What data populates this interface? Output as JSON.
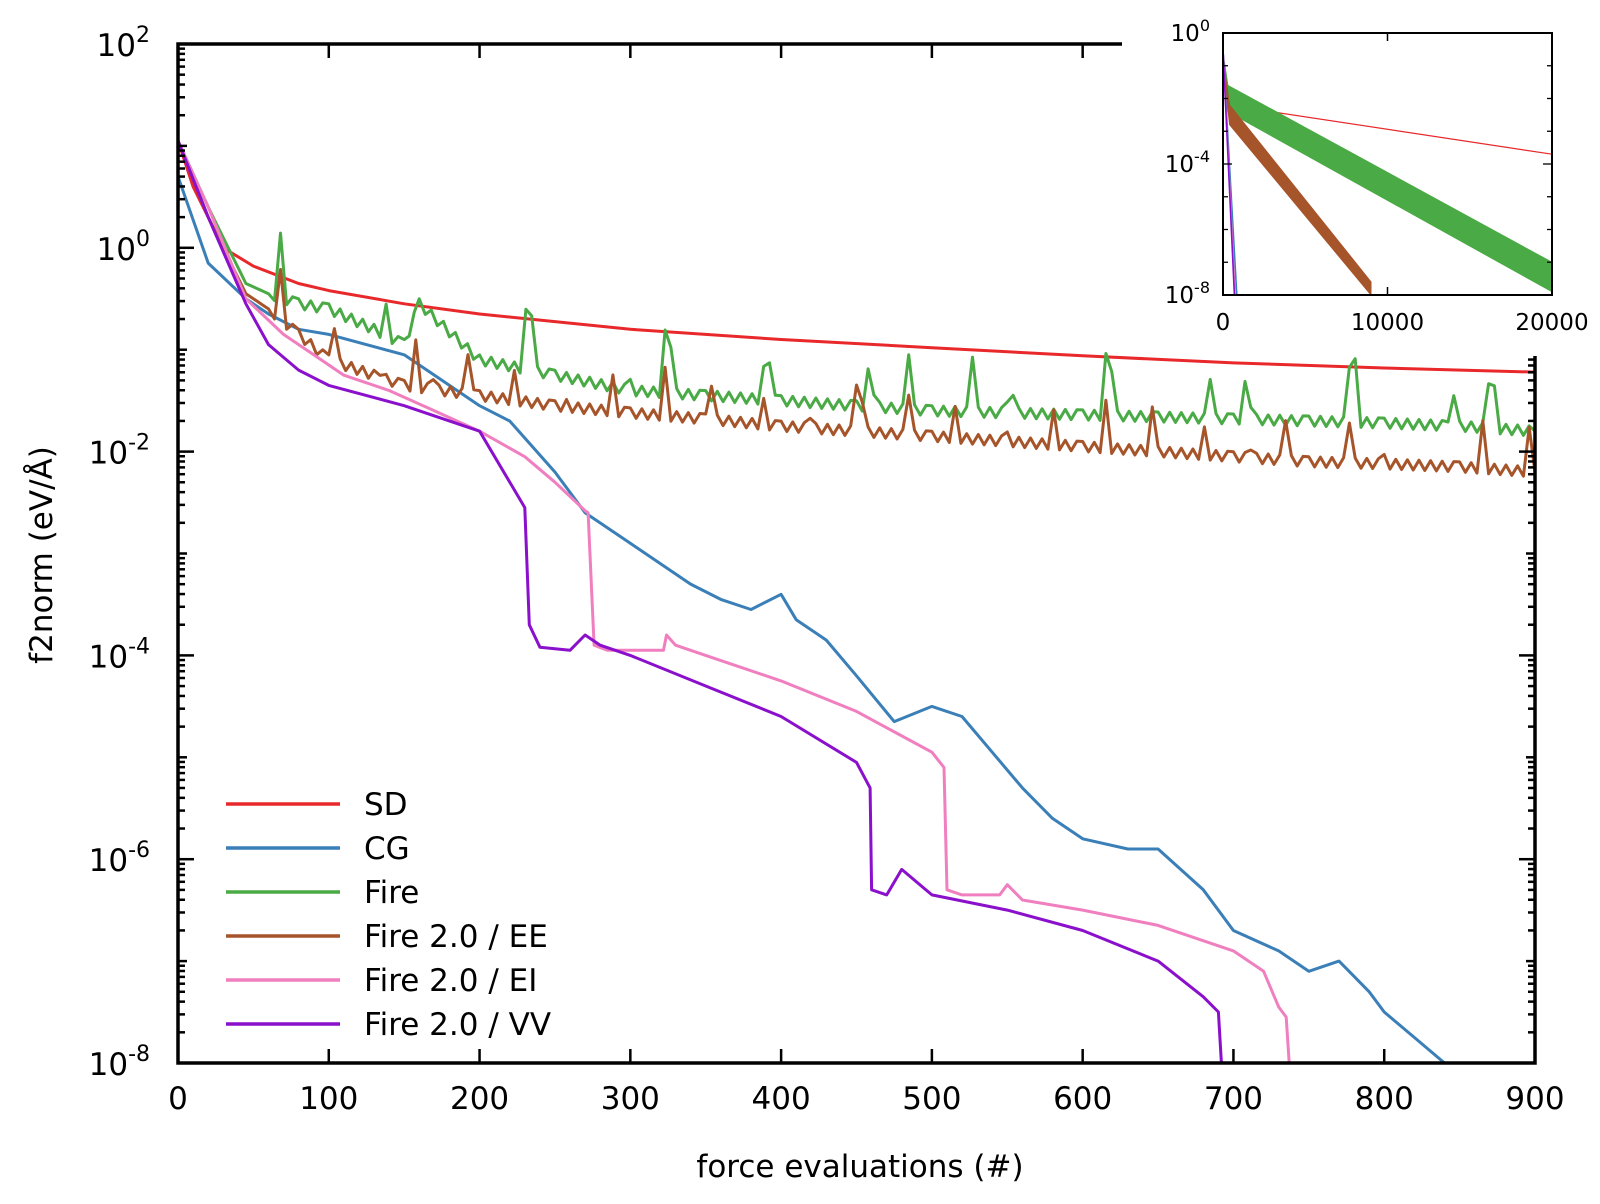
{
  "colors": {
    "SD": "#e8282a",
    "CG": "#3a7fb8",
    "Fire": "#4aaa45",
    "Fire 2.0 / EE": "#a6542a",
    "Fire 2.0 / EI": "#f07fbf",
    "Fire 2.0 / VV": "#8a10cc"
  },
  "chart_data": [
    {
      "id": "main",
      "type": "line",
      "xlabel": "force evaluations (#)",
      "ylabel": "f2norm (eV/Å)",
      "xscale": "linear",
      "yscale": "log",
      "xlim": [
        0,
        900
      ],
      "ylim_exp": [
        -8,
        2
      ],
      "x_ticks": [
        "0",
        "100",
        "200",
        "300",
        "400",
        "500",
        "600",
        "700",
        "800",
        "900"
      ],
      "y_tick_base": "10",
      "y_tick_exps": [
        "2",
        "0",
        "-2",
        "-4",
        "-6",
        "-8"
      ],
      "legend_position": "bottom-left",
      "legend": [
        "SD",
        "CG",
        "Fire",
        "Fire 2.0 / EE",
        "Fire 2.0 / EI",
        "Fire 2.0 / VV"
      ],
      "series": [
        {
          "name": "SD",
          "x": [
            0,
            10,
            20,
            30,
            50,
            80,
            100,
            150,
            200,
            300,
            400,
            500,
            600,
            700,
            800,
            900
          ],
          "y_log10": [
            1.05,
            0.6,
            0.3,
            0.0,
            -0.18,
            -0.35,
            -0.42,
            -0.55,
            -0.65,
            -0.8,
            -0.9,
            -0.98,
            -1.06,
            -1.13,
            -1.18,
            -1.22
          ]
        },
        {
          "name": "CG",
          "x": [
            0,
            20,
            45,
            60,
            80,
            100,
            150,
            200,
            220,
            250,
            270,
            300,
            320,
            340,
            360,
            380,
            400,
            410,
            430,
            450,
            475,
            500,
            520,
            540,
            560,
            580,
            600,
            630,
            650,
            680,
            700,
            730,
            750,
            770,
            790,
            800,
            820,
            840
          ],
          "y_log10": [
            0.7,
            -0.15,
            -0.5,
            -0.65,
            -0.8,
            -0.85,
            -1.05,
            -1.55,
            -1.7,
            -2.2,
            -2.6,
            -2.9,
            -3.1,
            -3.3,
            -3.45,
            -3.55,
            -3.4,
            -3.65,
            -3.85,
            -4.2,
            -4.65,
            -4.5,
            -4.6,
            -4.95,
            -5.3,
            -5.6,
            -5.8,
            -5.9,
            -5.9,
            -6.3,
            -6.7,
            -6.9,
            -7.1,
            -7.0,
            -7.3,
            -7.5,
            -7.75,
            -8.0
          ]
        },
        {
          "name": "Fire",
          "x": [
            0,
            20,
            45,
            60,
            80,
            100,
            130,
            150,
            160,
            200,
            250,
            300,
            350,
            400,
            450,
            500,
            550,
            600,
            650,
            700,
            750,
            800,
            850,
            900
          ],
          "y_log10": [
            1.05,
            0.4,
            -0.35,
            -0.45,
            -0.55,
            -0.6,
            -0.8,
            -0.95,
            -0.55,
            -1.1,
            -1.25,
            -1.4,
            -1.45,
            -1.5,
            -1.55,
            -1.6,
            -1.62,
            -1.64,
            -1.66,
            -1.68,
            -1.7,
            -1.72,
            -1.75,
            -1.8
          ]
        },
        {
          "name": "Fire 2.0 / EE",
          "x": [
            0,
            20,
            45,
            60,
            80,
            100,
            130,
            150,
            200,
            250,
            300,
            350,
            400,
            450,
            500,
            550,
            600,
            650,
            700,
            750,
            800,
            850,
            900
          ],
          "y_log10": [
            1.05,
            0.3,
            -0.45,
            -0.6,
            -0.85,
            -1.1,
            -1.25,
            -1.35,
            -1.45,
            -1.55,
            -1.62,
            -1.68,
            -1.75,
            -1.8,
            -1.85,
            -1.9,
            -1.95,
            -2.0,
            -2.05,
            -2.1,
            -2.12,
            -2.15,
            -2.2
          ]
        },
        {
          "name": "Fire 2.0 / EI",
          "x": [
            0,
            20,
            45,
            70,
            90,
            110,
            140,
            170,
            200,
            230,
            250,
            270,
            272,
            276,
            285,
            300,
            322,
            324,
            330,
            350,
            400,
            450,
            500,
            508,
            510,
            520,
            545,
            550,
            560,
            600,
            650,
            700,
            720,
            730,
            735,
            737
          ],
          "y_log10": [
            1.05,
            0.4,
            -0.5,
            -0.85,
            -1.05,
            -1.25,
            -1.4,
            -1.6,
            -1.8,
            -2.05,
            -2.3,
            -2.58,
            -2.6,
            -3.9,
            -3.95,
            -3.95,
            -3.95,
            -3.8,
            -3.9,
            -4.0,
            -4.25,
            -4.55,
            -4.95,
            -5.1,
            -6.3,
            -6.35,
            -6.35,
            -6.25,
            -6.4,
            -6.5,
            -6.65,
            -6.9,
            -7.1,
            -7.45,
            -7.55,
            -8.0
          ]
        },
        {
          "name": "Fire 2.0 / VV",
          "x": [
            0,
            20,
            45,
            60,
            80,
            100,
            150,
            200,
            230,
            233,
            240,
            260,
            270,
            280,
            300,
            350,
            400,
            450,
            459,
            460,
            470,
            480,
            500,
            550,
            600,
            650,
            680,
            690,
            692
          ],
          "y_log10": [
            1.05,
            0.3,
            -0.55,
            -0.95,
            -1.2,
            -1.35,
            -1.55,
            -1.8,
            -2.55,
            -3.7,
            -3.92,
            -3.95,
            -3.8,
            -3.9,
            -4.0,
            -4.3,
            -4.6,
            -5.05,
            -5.3,
            -6.3,
            -6.35,
            -6.1,
            -6.35,
            -6.5,
            -6.7,
            -7.0,
            -7.35,
            -7.5,
            -8.0
          ]
        }
      ]
    },
    {
      "id": "inset",
      "type": "line",
      "position": "top-right",
      "xscale": "linear",
      "yscale": "log",
      "xlim": [
        0,
        20000
      ],
      "ylim_exp": [
        -8,
        0
      ],
      "x_ticks": [
        "0",
        "10000",
        "20000"
      ],
      "y_tick_base": "10",
      "y_tick_exps": [
        "0",
        "-4",
        "-8"
      ],
      "series": [
        {
          "name": "SD",
          "x": [
            0,
            300,
            20000
          ],
          "y_log10": [
            -1.0,
            -2.2,
            -3.7
          ]
        },
        {
          "name": "Fire",
          "band": true,
          "x": [
            0,
            300,
            20000
          ],
          "y_upper_log10": [
            -0.6,
            -1.6,
            -7.0
          ],
          "y_lower_log10": [
            -0.9,
            -2.4,
            -7.9
          ]
        },
        {
          "name": "Fire 2.0 / EE",
          "band": true,
          "x": [
            0,
            400,
            9000
          ],
          "y_upper_log10": [
            -0.8,
            -2.2,
            -7.6
          ],
          "y_lower_log10": [
            -1.0,
            -2.8,
            -8.0
          ]
        },
        {
          "name": "CG",
          "x": [
            0,
            840
          ],
          "y_log10": [
            -0.5,
            -8.0
          ]
        },
        {
          "name": "Fire 2.0 / EI",
          "x": [
            0,
            737
          ],
          "y_log10": [
            -0.5,
            -8.0
          ]
        },
        {
          "name": "Fire 2.0 / VV",
          "x": [
            0,
            692
          ],
          "y_log10": [
            -0.5,
            -8.0
          ]
        }
      ]
    }
  ]
}
